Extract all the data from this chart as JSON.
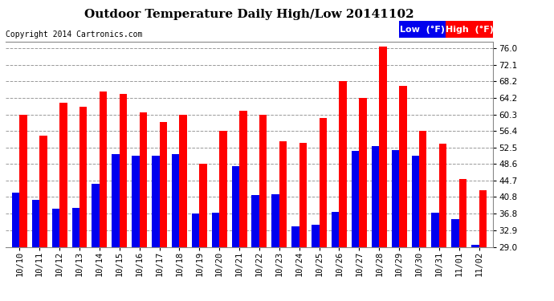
{
  "title": "Outdoor Temperature Daily High/Low 20141102",
  "copyright": "Copyright 2014 Cartronics.com",
  "categories": [
    "10/10",
    "10/11",
    "10/12",
    "10/13",
    "10/14",
    "10/15",
    "10/16",
    "10/17",
    "10/18",
    "10/19",
    "10/20",
    "10/21",
    "10/22",
    "10/23",
    "10/24",
    "10/25",
    "10/26",
    "10/27",
    "10/28",
    "10/29",
    "10/30",
    "10/31",
    "11/01",
    "11/02"
  ],
  "high_values": [
    60.3,
    55.4,
    63.1,
    62.1,
    65.8,
    65.3,
    60.8,
    58.5,
    60.3,
    48.6,
    56.4,
    61.2,
    60.3,
    54.1,
    53.6,
    59.5,
    68.2,
    64.2,
    76.5,
    67.1,
    56.4,
    53.5,
    45.1,
    42.5
  ],
  "low_values": [
    41.9,
    40.1,
    38.1,
    38.3,
    43.9,
    50.9,
    50.5,
    50.5,
    50.9,
    36.8,
    37.1,
    48.2,
    41.2,
    41.5,
    33.8,
    34.2,
    37.3,
    51.8,
    52.8,
    52.0,
    50.5,
    37.0,
    35.5,
    29.5
  ],
  "high_color": "#ff0000",
  "low_color": "#0000ee",
  "bg_color": "#ffffff",
  "plot_bg_color": "#ffffff",
  "grid_color": "#999999",
  "yticks": [
    29.0,
    32.9,
    36.8,
    40.8,
    44.7,
    48.6,
    52.5,
    56.4,
    60.3,
    64.2,
    68.2,
    72.1,
    76.0
  ],
  "ymin": 29.0,
  "ymax": 77.5,
  "title_fontsize": 11,
  "copyright_fontsize": 7,
  "tick_fontsize": 7.5,
  "legend_fontsize": 8,
  "bar_width": 0.38
}
